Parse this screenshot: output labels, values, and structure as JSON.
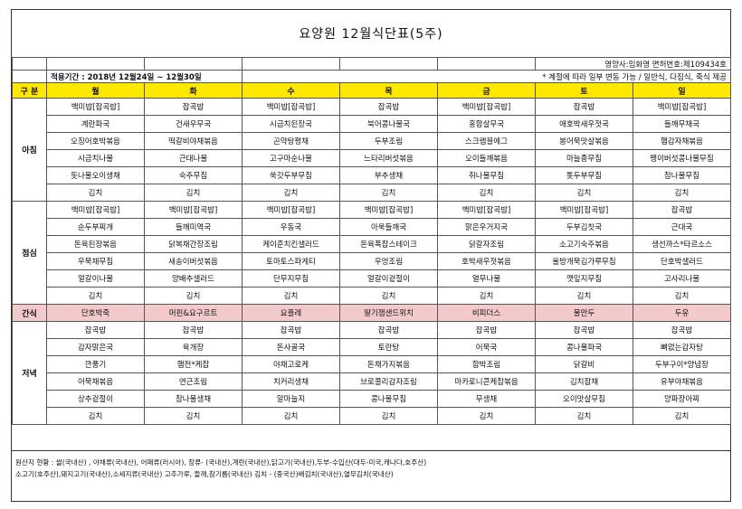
{
  "title": "요양원 12월식단표(5주)",
  "staff": "영양사:임화영   면허번호:제109434호",
  "period": "적용기간 : 2018년 12월24일 ~ 12월30일",
  "note": "* 계절에 따라 일부 변동 가능 / 일반식, 다짐식, 죽식 제공",
  "header": {
    "category": "구 분",
    "days": [
      "월",
      "화",
      "수",
      "목",
      "금",
      "토",
      "일"
    ]
  },
  "meals": [
    {
      "name": "아침",
      "rows": [
        [
          "백미밥[잡곡밥]",
          "잡곡밥",
          "백미밥[잡곡밥]",
          "잡곡밥",
          "백미밥[잡곡밥]",
          "잡곡밥",
          "백미밥[잡곡밥]"
        ],
        [
          "계란파국",
          "건새우무국",
          "시금치된장국",
          "북어콩나물국",
          "홍합살무국",
          "애호박새우젓국",
          "들깨무채국"
        ],
        [
          "오징어호박볶음",
          "떡갈비야채볶음",
          "곤약탕평채",
          "두부조림",
          "스크램블에그",
          "봉어묵맛살볶음",
          "햄감자채볶음"
        ],
        [
          "시금치나물",
          "근대나물",
          "고구마순나물",
          "느타리버섯볶음",
          "오이들깨볶음",
          "마늘종무침",
          "팽이버섯콩나물무침"
        ],
        [
          "돗나물오이생채",
          "숙주무침",
          "쑥갓두부무침",
          "부추생채",
          "취나물무침",
          "톳두부무침",
          "참나물무침"
        ],
        [
          "김치",
          "김치",
          "김치",
          "김치",
          "김치",
          "김치",
          "김치"
        ]
      ]
    },
    {
      "name": "점심",
      "rows": [
        [
          "백미밥[잡곡밥]",
          "백미밥[잡곡밥]",
          "백미밥[잡곡밥]",
          "백미밥[잡곡밥]",
          "백미밥[잡곡밥]",
          "백미밥[잡곡밥]",
          "잡곡밥"
        ],
        [
          "순두부찌개",
          "들깨미역국",
          "우동국",
          "아욱들깨국",
          "맑은우거지국",
          "두부김칫국",
          "근대국"
        ],
        [
          "돈육된장볶음",
          "닭복채간장조림",
          "케이준치킨샐러드",
          "돈육폭찹스테이크",
          "닭갈자조림",
          "소고기숙주볶음",
          "생선까스*타르소스"
        ],
        [
          "우묵채무침",
          "새송이버섯볶음",
          "토마토스파게티",
          "우엉조림",
          "호박새우젓볶음",
          "울방개묵김가루무침",
          "단호박샐러드"
        ],
        [
          "얼갈이나물",
          "양배추샐러드",
          "단무지무침",
          "얼갈이겉절이",
          "열무나물",
          "깻잎지무침",
          "고사리나물"
        ],
        [
          "김치",
          "김치",
          "김치",
          "김치",
          "김치",
          "김치",
          "김치"
        ]
      ]
    },
    {
      "name": "간식",
      "rows": [
        [
          "단호박죽",
          "머핀&요구르트",
          "요플레",
          "딸기잼샌드위치",
          "비피더스",
          "물만두",
          "두유"
        ]
      ]
    },
    {
      "name": "저녁",
      "rows": [
        [
          "잡곡밥",
          "잡곡밥",
          "잡곡밥",
          "잡곡밥",
          "잡곡밥",
          "잡곡밥",
          "잡곡밥"
        ],
        [
          "감자맑은국",
          "육개장",
          "돈사골국",
          "토란탕",
          "어묵국",
          "콩나물파국",
          "뼈없는감자탕"
        ],
        [
          "깐풍기",
          "햄전*케찹",
          "야채고로케",
          "돈채가지볶음",
          "함박조림",
          "닭갈비",
          "두부구이*양념장"
        ],
        [
          "어묵채볶음",
          "연근조림",
          "치커리생채",
          "브로콜리감자조림",
          "마카로니콘케찹볶음",
          "김치잡채",
          "유부야채볶음"
        ],
        [
          "상추겉절이",
          "참나물생채",
          "알마늘지",
          "콩나물무침",
          "무생채",
          "오이맛살무침",
          "양파장아찌"
        ],
        [
          "김치",
          "김치",
          "김치",
          "김치",
          "김치",
          "김치",
          "김치"
        ]
      ]
    }
  ],
  "origin": {
    "line1": "원산지 현황 : 쌀(국내산) , 야채류(국내산), 어패류(러시아),  장류- (국내산),계란(국내산),닭고기(국내산),두부-수입산(대두-미국,캐나다,호주산)",
    "line2": "소고기(호주산),돼지고기(국내산),소세지류(국내산) 고추가루, 들깨,참기름(국내산) 김치 - (중국산)배김치(국내산),열무김치(국내산)"
  }
}
